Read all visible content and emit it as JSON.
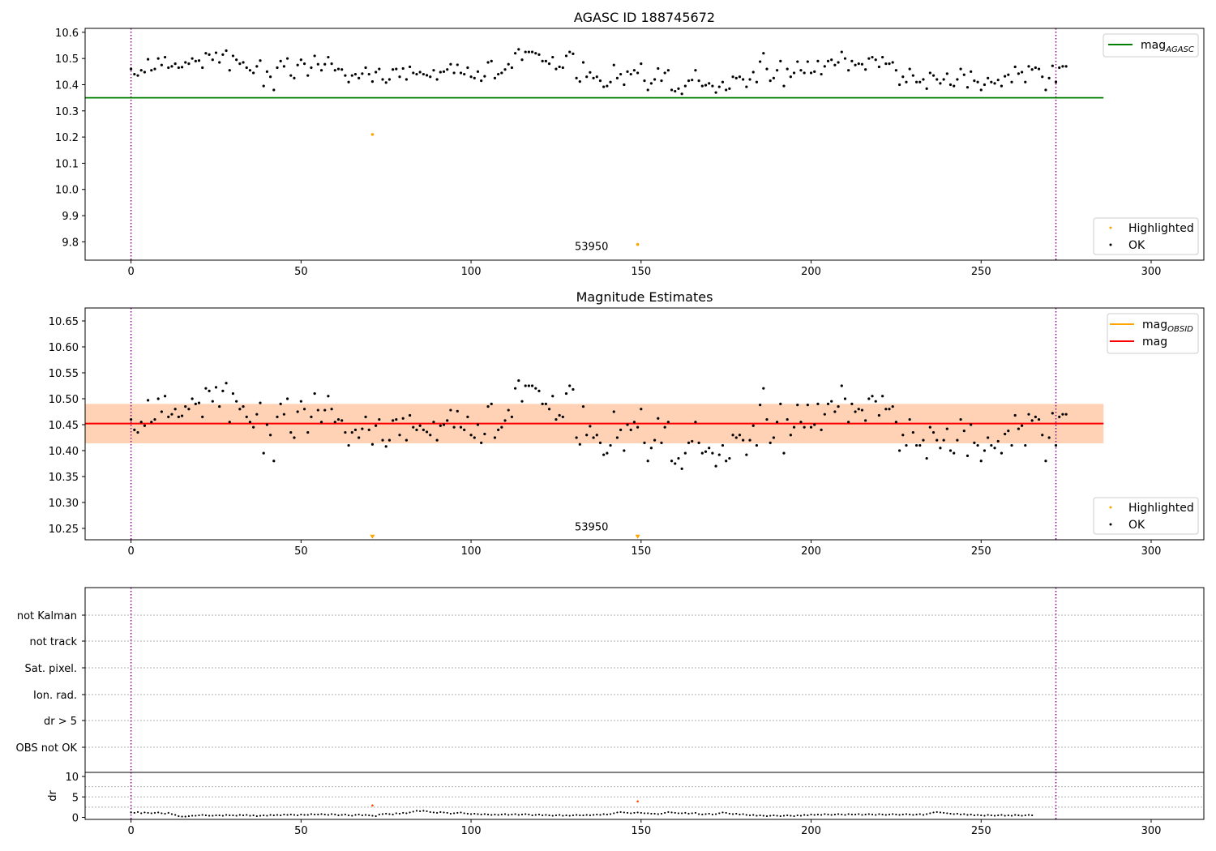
{
  "chart_data": [
    {
      "type": "scatter",
      "title": "AGASC ID 188745672",
      "xlim": [
        -13.5,
        315.5
      ],
      "ylim": [
        9.73,
        10.615
      ],
      "xticks": [
        0,
        50,
        100,
        150,
        200,
        250,
        300
      ],
      "yticks": [
        9.8,
        9.9,
        10.0,
        10.1,
        10.2,
        10.3,
        10.4,
        10.5,
        10.6
      ],
      "ytick_labels": [
        "9.8",
        "9.9",
        "10.0",
        "10.1",
        "10.2",
        "10.3",
        "10.4",
        "10.5",
        "10.6"
      ],
      "hlines": [
        {
          "name": "mag_AGASC",
          "y": 10.35,
          "x": [
            -13.5,
            286
          ],
          "color": "#008000"
        }
      ],
      "vlines": [
        {
          "x": 0,
          "color": "#800080"
        },
        {
          "x": 272,
          "color": "#800080"
        }
      ],
      "annotations": [
        {
          "text": "53950",
          "x": 130.5,
          "y": 9.75
        }
      ],
      "highlighted": [
        {
          "x": 71,
          "y": 10.21
        },
        {
          "x": 149,
          "y": 9.79
        }
      ],
      "legends": [
        {
          "position": "top-right",
          "entries": [
            {
              "label": "mag",
              "sub": "AGASC",
              "kind": "line",
              "color": "#008000"
            }
          ]
        },
        {
          "position": "bottom-right",
          "entries": [
            {
              "label": "Highlighted",
              "kind": "dot",
              "color": "#ffa500"
            },
            {
              "label": "OK",
              "kind": "dot",
              "color": "#000000"
            }
          ]
        }
      ]
    },
    {
      "type": "scatter",
      "title": "Magnitude Estimates",
      "xlim": [
        -13.5,
        315.5
      ],
      "ylim": [
        10.228,
        10.675
      ],
      "xticks": [
        0,
        50,
        100,
        150,
        200,
        250,
        300
      ],
      "yticks": [
        10.25,
        10.3,
        10.35,
        10.4,
        10.45,
        10.5,
        10.55,
        10.6,
        10.65
      ],
      "ytick_labels": [
        "10.25",
        "10.30",
        "10.35",
        "10.40",
        "10.45",
        "10.50",
        "10.55",
        "10.60",
        "10.65"
      ],
      "hlines": [
        {
          "name": "mag",
          "y": 10.452,
          "x": [
            -13.5,
            286
          ],
          "color": "#ff0000"
        }
      ],
      "bands": [
        {
          "y": [
            10.414,
            10.49
          ],
          "x": [
            -13.5,
            286
          ],
          "color": "#ffb6c1",
          "opacity": 0.45
        },
        {
          "y": [
            10.414,
            10.49
          ],
          "x": [
            -13.5,
            286
          ],
          "color": "#ffa500",
          "opacity": 0.2
        }
      ],
      "vlines": [
        {
          "x": 0,
          "color": "#800080"
        },
        {
          "x": 272,
          "color": "#800080"
        }
      ],
      "annotations": [
        {
          "text": "53950",
          "x": 130.5,
          "y": 10.24
        }
      ],
      "highlighted_markers": [
        {
          "x": 71,
          "y": 10.233
        },
        {
          "x": 149,
          "y": 10.233
        }
      ],
      "legends": [
        {
          "position": "top-right",
          "entries": [
            {
              "label": "mag",
              "sub": "OBSID",
              "kind": "line",
              "color": "#ffa500"
            },
            {
              "label": "mag",
              "sub": "",
              "kind": "line",
              "color": "#ff0000"
            }
          ]
        },
        {
          "position": "bottom-right",
          "entries": [
            {
              "label": "Highlighted",
              "kind": "dot",
              "color": "#ffa500"
            },
            {
              "label": "OK",
              "kind": "dot",
              "color": "#000000"
            }
          ]
        }
      ]
    },
    {
      "type": "scatter",
      "title": "",
      "xlim": [
        -13.5,
        315.5
      ],
      "categories": [
        "not Kalman",
        "not track",
        "Sat. pixel.",
        "Ion. rad.",
        "dr > 5",
        "OBS not OK"
      ],
      "vlines": [
        {
          "x": 0,
          "color": "#800080"
        },
        {
          "x": 272,
          "color": "#800080"
        }
      ]
    },
    {
      "type": "scatter",
      "title": "",
      "ylabel": "dr",
      "xlim": [
        -13.5,
        315.5
      ],
      "ylim": [
        -0.5,
        11
      ],
      "xticks": [
        0,
        50,
        100,
        150,
        200,
        250,
        300
      ],
      "yticks": [
        0,
        5,
        10
      ],
      "ytick_labels": [
        "0",
        "5",
        "10"
      ],
      "vlines": [
        {
          "x": 0,
          "color": "#800080"
        },
        {
          "x": 272,
          "color": "#800080"
        }
      ],
      "highlighted": [
        {
          "x": 71,
          "y": 2.9
        },
        {
          "x": 149,
          "y": 3.9
        }
      ]
    }
  ],
  "mag_series": [
    10.46,
    10.44,
    10.435,
    10.455,
    10.448,
    10.497,
    10.455,
    10.46,
    10.5,
    10.475,
    10.505,
    10.465,
    10.47,
    10.48,
    10.465,
    10.467,
    10.485,
    10.48,
    10.5,
    10.49,
    10.492,
    10.465,
    10.52,
    10.515,
    10.495,
    10.522,
    10.485,
    10.515,
    10.53,
    10.455,
    10.51,
    10.495,
    10.48,
    10.485,
    10.465,
    10.455,
    10.445,
    10.47,
    10.492,
    10.395,
    10.45,
    10.43,
    10.38,
    10.465,
    10.49,
    10.47,
    10.5,
    10.435,
    10.425,
    10.475,
    10.495,
    10.48,
    10.435,
    10.465,
    10.51,
    10.478,
    10.455,
    10.478,
    10.505,
    10.48,
    10.455,
    10.46,
    10.458,
    10.435,
    10.41,
    10.435,
    10.44,
    10.425,
    10.442,
    10.465,
    10.44,
    10.412,
    10.448,
    10.46,
    10.42,
    10.408,
    10.42,
    10.458,
    10.46,
    10.43,
    10.462,
    10.42,
    10.468,
    10.445,
    10.44,
    10.448,
    10.44,
    10.436,
    10.43,
    10.455,
    10.42,
    10.448,
    10.45,
    10.458,
    10.478,
    10.445,
    10.476,
    10.445,
    10.44,
    10.465,
    10.43,
    10.425,
    10.45,
    10.415,
    10.432,
    10.485,
    10.49,
    10.425,
    10.44,
    10.445,
    10.458,
    10.478,
    10.465,
    10.52,
    10.535,
    10.495,
    10.525,
    10.525,
    10.525,
    10.52,
    10.515,
    10.49,
    10.49,
    10.48,
    10.505,
    10.46,
    10.468,
    10.465,
    10.51,
    10.525,
    10.518,
    10.425,
    10.412,
    10.485,
    10.43,
    10.447,
    10.425,
    10.43,
    10.415,
    10.392,
    10.395,
    10.41,
    10.475,
    10.425,
    10.44,
    10.4,
    10.45,
    10.44,
    10.455,
    10.445,
    10.48,
    10.415,
    10.38,
    10.405,
    10.42,
    10.462,
    10.415,
    10.445,
    10.455,
    10.38,
    10.375,
    10.385,
    10.365,
    10.395,
    10.415,
    10.418,
    10.455,
    10.415,
    10.395,
    10.398,
    10.405,
    10.395,
    10.37,
    10.392,
    10.41,
    10.38,
    10.385,
    10.43,
    10.425,
    10.43,
    10.42,
    10.392,
    10.42,
    10.448,
    10.41,
    10.488,
    10.52,
    10.46,
    10.415,
    10.425,
    10.455,
    10.49,
    10.395,
    10.46,
    10.43,
    10.445,
    10.488,
    10.455,
    10.445,
    10.488,
    10.445,
    10.45,
    10.49,
    10.44,
    10.47,
    10.49,
    10.495,
    10.475,
    10.485,
    10.525,
    10.5,
    10.455,
    10.49,
    10.475,
    10.48,
    10.478,
    10.458,
    10.5,
    10.505,
    10.495,
    10.468,
    10.505,
    10.48,
    10.48,
    10.485,
    10.455,
    10.4,
    10.43,
    10.41,
    10.46,
    10.435,
    10.41,
    10.41,
    10.42,
    10.385,
    10.445,
    10.435,
    10.42,
    10.405,
    10.42,
    10.442,
    10.4,
    10.395,
    10.42,
    10.46,
    10.438,
    10.39,
    10.45,
    10.415,
    10.41,
    10.38,
    10.4,
    10.425,
    10.41,
    10.405,
    10.418,
    10.395,
    10.432,
    10.438,
    10.41,
    10.468,
    10.442,
    10.448,
    10.41,
    10.47,
    10.458,
    10.465,
    10.46,
    10.43,
    10.38,
    10.425,
    10.472,
    10.41,
    10.465,
    10.47,
    10.47
  ],
  "dr_series": [
    1.2,
    1.1,
    1.3,
    1.0,
    1.2,
    1.1,
    1.0,
    1.1,
    1.2,
    1.0,
    0.9,
    1.1,
    0.8,
    0.6,
    0.3,
    0.2,
    0.2,
    0.3,
    0.4,
    0.4,
    0.5,
    0.6,
    0.5,
    0.4,
    0.4,
    0.5,
    0.5,
    0.4,
    0.6,
    0.5,
    0.5,
    0.4,
    0.6,
    0.5,
    0.6,
    0.4,
    0.5,
    0.3,
    0.4,
    0.5,
    0.4,
    0.6,
    0.5,
    0.6,
    0.5,
    0.7,
    0.6,
    0.7,
    0.6,
    0.5,
    0.7,
    0.6,
    0.6,
    0.8,
    0.7,
    0.7,
    0.8,
    0.7,
    0.6,
    0.8,
    0.7,
    0.5,
    0.6,
    0.7,
    0.5,
    0.4,
    0.6,
    0.7,
    0.5,
    0.6,
    0.5,
    0.4,
    0.3,
    0.7,
    0.8,
    0.9,
    0.8,
    0.7,
    1.0,
    0.9,
    1.1,
    1.0,
    1.2,
    1.4,
    1.6,
    1.5,
    1.6,
    1.5,
    1.3,
    1.2,
    1.1,
    1.3,
    1.2,
    1.1,
    0.9,
    1.0,
    1.1,
    1.2,
    1.0,
    0.9,
    0.8,
    0.9,
    0.8,
    0.7,
    0.8,
    0.7,
    0.6,
    0.7,
    0.6,
    0.7,
    0.8,
    0.6,
    0.7,
    0.8,
    0.6,
    0.7,
    0.8,
    0.7,
    0.5,
    0.6,
    0.7,
    0.5,
    0.6,
    0.5,
    0.4,
    0.5,
    0.6,
    0.4,
    0.5,
    0.4,
    0.5,
    0.6,
    0.5,
    0.5,
    0.6,
    0.5,
    0.6,
    0.7,
    0.6,
    0.8,
    0.7,
    0.8,
    1.0,
    1.2,
    1.3,
    1.2,
    1.1,
    1.0,
    1.1,
    1.2,
    1.1,
    1.0,
    1.0,
    0.9,
    0.9,
    0.8,
    0.9,
    1.1,
    1.3,
    1.2,
    1.1,
    1.0,
    1.0,
    1.1,
    0.9,
    1.0,
    1.1,
    0.8,
    0.7,
    0.8,
    0.9,
    0.7,
    0.8,
    1.0,
    1.2,
    1.1,
    0.9,
    0.8,
    0.9,
    0.7,
    0.8,
    0.6,
    0.5,
    0.6,
    0.4,
    0.5,
    0.4,
    0.3,
    0.4,
    0.5,
    0.4,
    0.3,
    0.4,
    0.5,
    0.4,
    0.3,
    0.5,
    0.4,
    0.6,
    0.5,
    0.7,
    0.6,
    0.7,
    0.6,
    0.8,
    0.7,
    0.6,
    0.7,
    0.8,
    0.7,
    0.6,
    0.8,
    0.7,
    0.7,
    0.8,
    0.6,
    0.7,
    0.8,
    0.7,
    0.6,
    0.8,
    0.7,
    0.6,
    0.7,
    0.8,
    0.7,
    0.6,
    0.7,
    0.8,
    0.7,
    0.6,
    0.7,
    0.8,
    0.6,
    0.8,
    1.0,
    1.2,
    1.3,
    1.2,
    1.1,
    1.0,
    0.9,
    0.8,
    0.9,
    0.7,
    0.8,
    0.6,
    0.7,
    0.5,
    0.6,
    0.5,
    0.4,
    0.6,
    0.5,
    0.4,
    0.5,
    0.6,
    0.4,
    0.5,
    0.4,
    0.6,
    0.5,
    0.4,
    0.5,
    0.6,
    0.5
  ]
}
